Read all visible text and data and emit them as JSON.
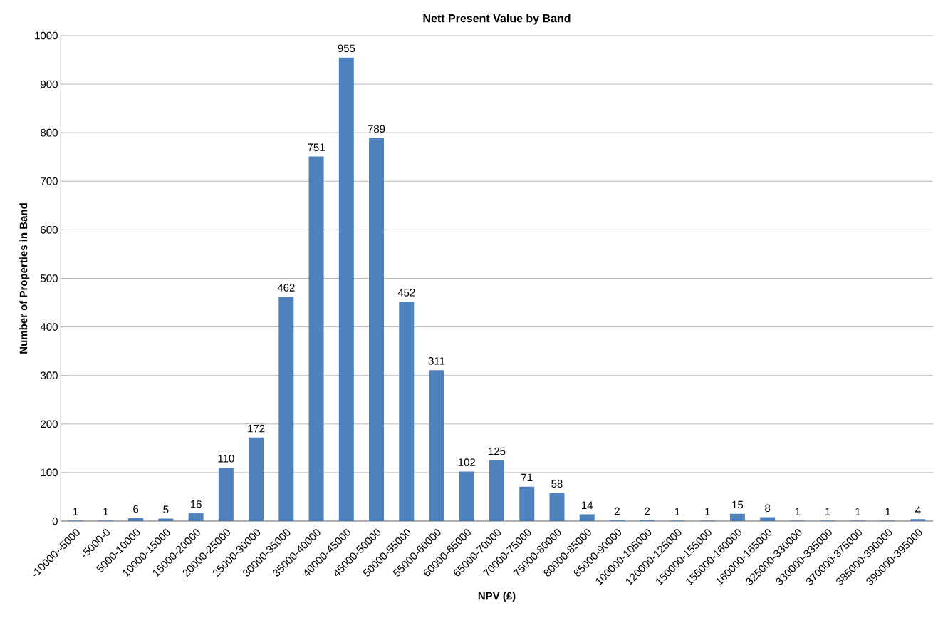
{
  "chart_data": {
    "type": "bar",
    "title": "Nett Present Value by Band",
    "xlabel": "NPV (£)",
    "ylabel": "Number of Properties  in Band",
    "categories": [
      "-10000--5000",
      "-5000-0",
      "5000-10000",
      "10000-15000",
      "15000-20000",
      "20000-25000",
      "25000-30000",
      "30000-35000",
      "35000-40000",
      "40000-45000",
      "45000-50000",
      "50000-55000",
      "55000-60000",
      "60000-65000",
      "65000-70000",
      "70000-75000",
      "75000-80000",
      "80000-85000",
      "85000-90000",
      "100000-105000",
      "120000-125000",
      "150000-155000",
      "155000-160000",
      "160000-165000",
      "325000-330000",
      "330000-335000",
      "370000-375000",
      "385000-390000",
      "390000-395000"
    ],
    "values": [
      1,
      1,
      6,
      5,
      16,
      110,
      172,
      462,
      751,
      955,
      789,
      452,
      311,
      102,
      125,
      71,
      58,
      14,
      2,
      2,
      1,
      1,
      15,
      8,
      1,
      1,
      1,
      1,
      4
    ],
    "color": "#4f81bd",
    "ylim": [
      0,
      1000
    ],
    "yticks": [
      0,
      100,
      200,
      300,
      400,
      500,
      600,
      700,
      800,
      900,
      1000
    ],
    "grid": "y",
    "data_labels": true
  }
}
